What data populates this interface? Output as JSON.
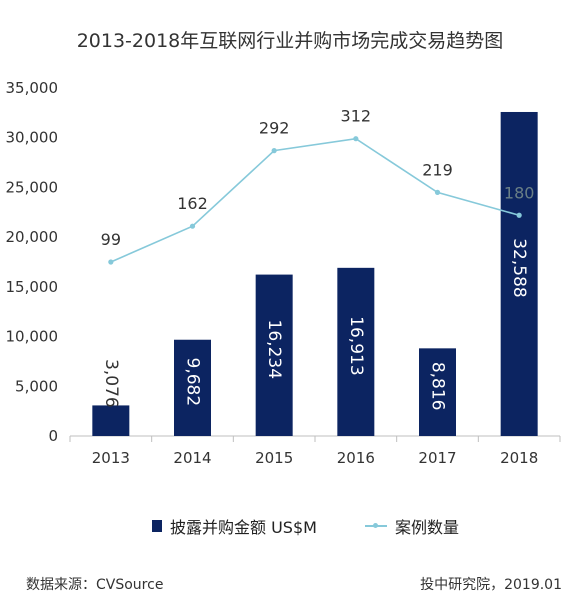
{
  "title": "2013-2018年互联网行业并购市场完成交易趋势图",
  "source": "数据来源：CVSource",
  "credit": "投中研究院，2019.01",
  "colors": {
    "bar": "#0c2461",
    "line": "#86c9da",
    "axis": "#bfbfbf"
  },
  "chart_data": {
    "type": "bar",
    "categories": [
      "2013",
      "2014",
      "2015",
      "2016",
      "2017",
      "2018"
    ],
    "ylim": [
      0,
      35000
    ],
    "yticks": [
      0,
      5000,
      10000,
      15000,
      20000,
      25000,
      30000,
      35000
    ],
    "ytick_labels": [
      "0",
      "5,000",
      "10,000",
      "15,000",
      "20,000",
      "25,000",
      "30,000",
      "35,000"
    ],
    "series": [
      {
        "name": "披露并购金额 US$M",
        "type": "bar",
        "values": [
          3076,
          9682,
          16234,
          16913,
          8816,
          32588
        ],
        "labels": [
          "3,076",
          "9,682",
          "16,234",
          "16,913",
          "8,816",
          "32,588"
        ]
      },
      {
        "name": "案例数量",
        "type": "line",
        "values": [
          99,
          162,
          292,
          312,
          219,
          180
        ],
        "labels": [
          "99",
          "162",
          "292",
          "312",
          "219",
          "180"
        ],
        "plotted_on_left_axis_as": [
          17500,
          21100,
          28700,
          29900,
          24500,
          22200
        ]
      }
    ],
    "legend_position": "bottom"
  }
}
